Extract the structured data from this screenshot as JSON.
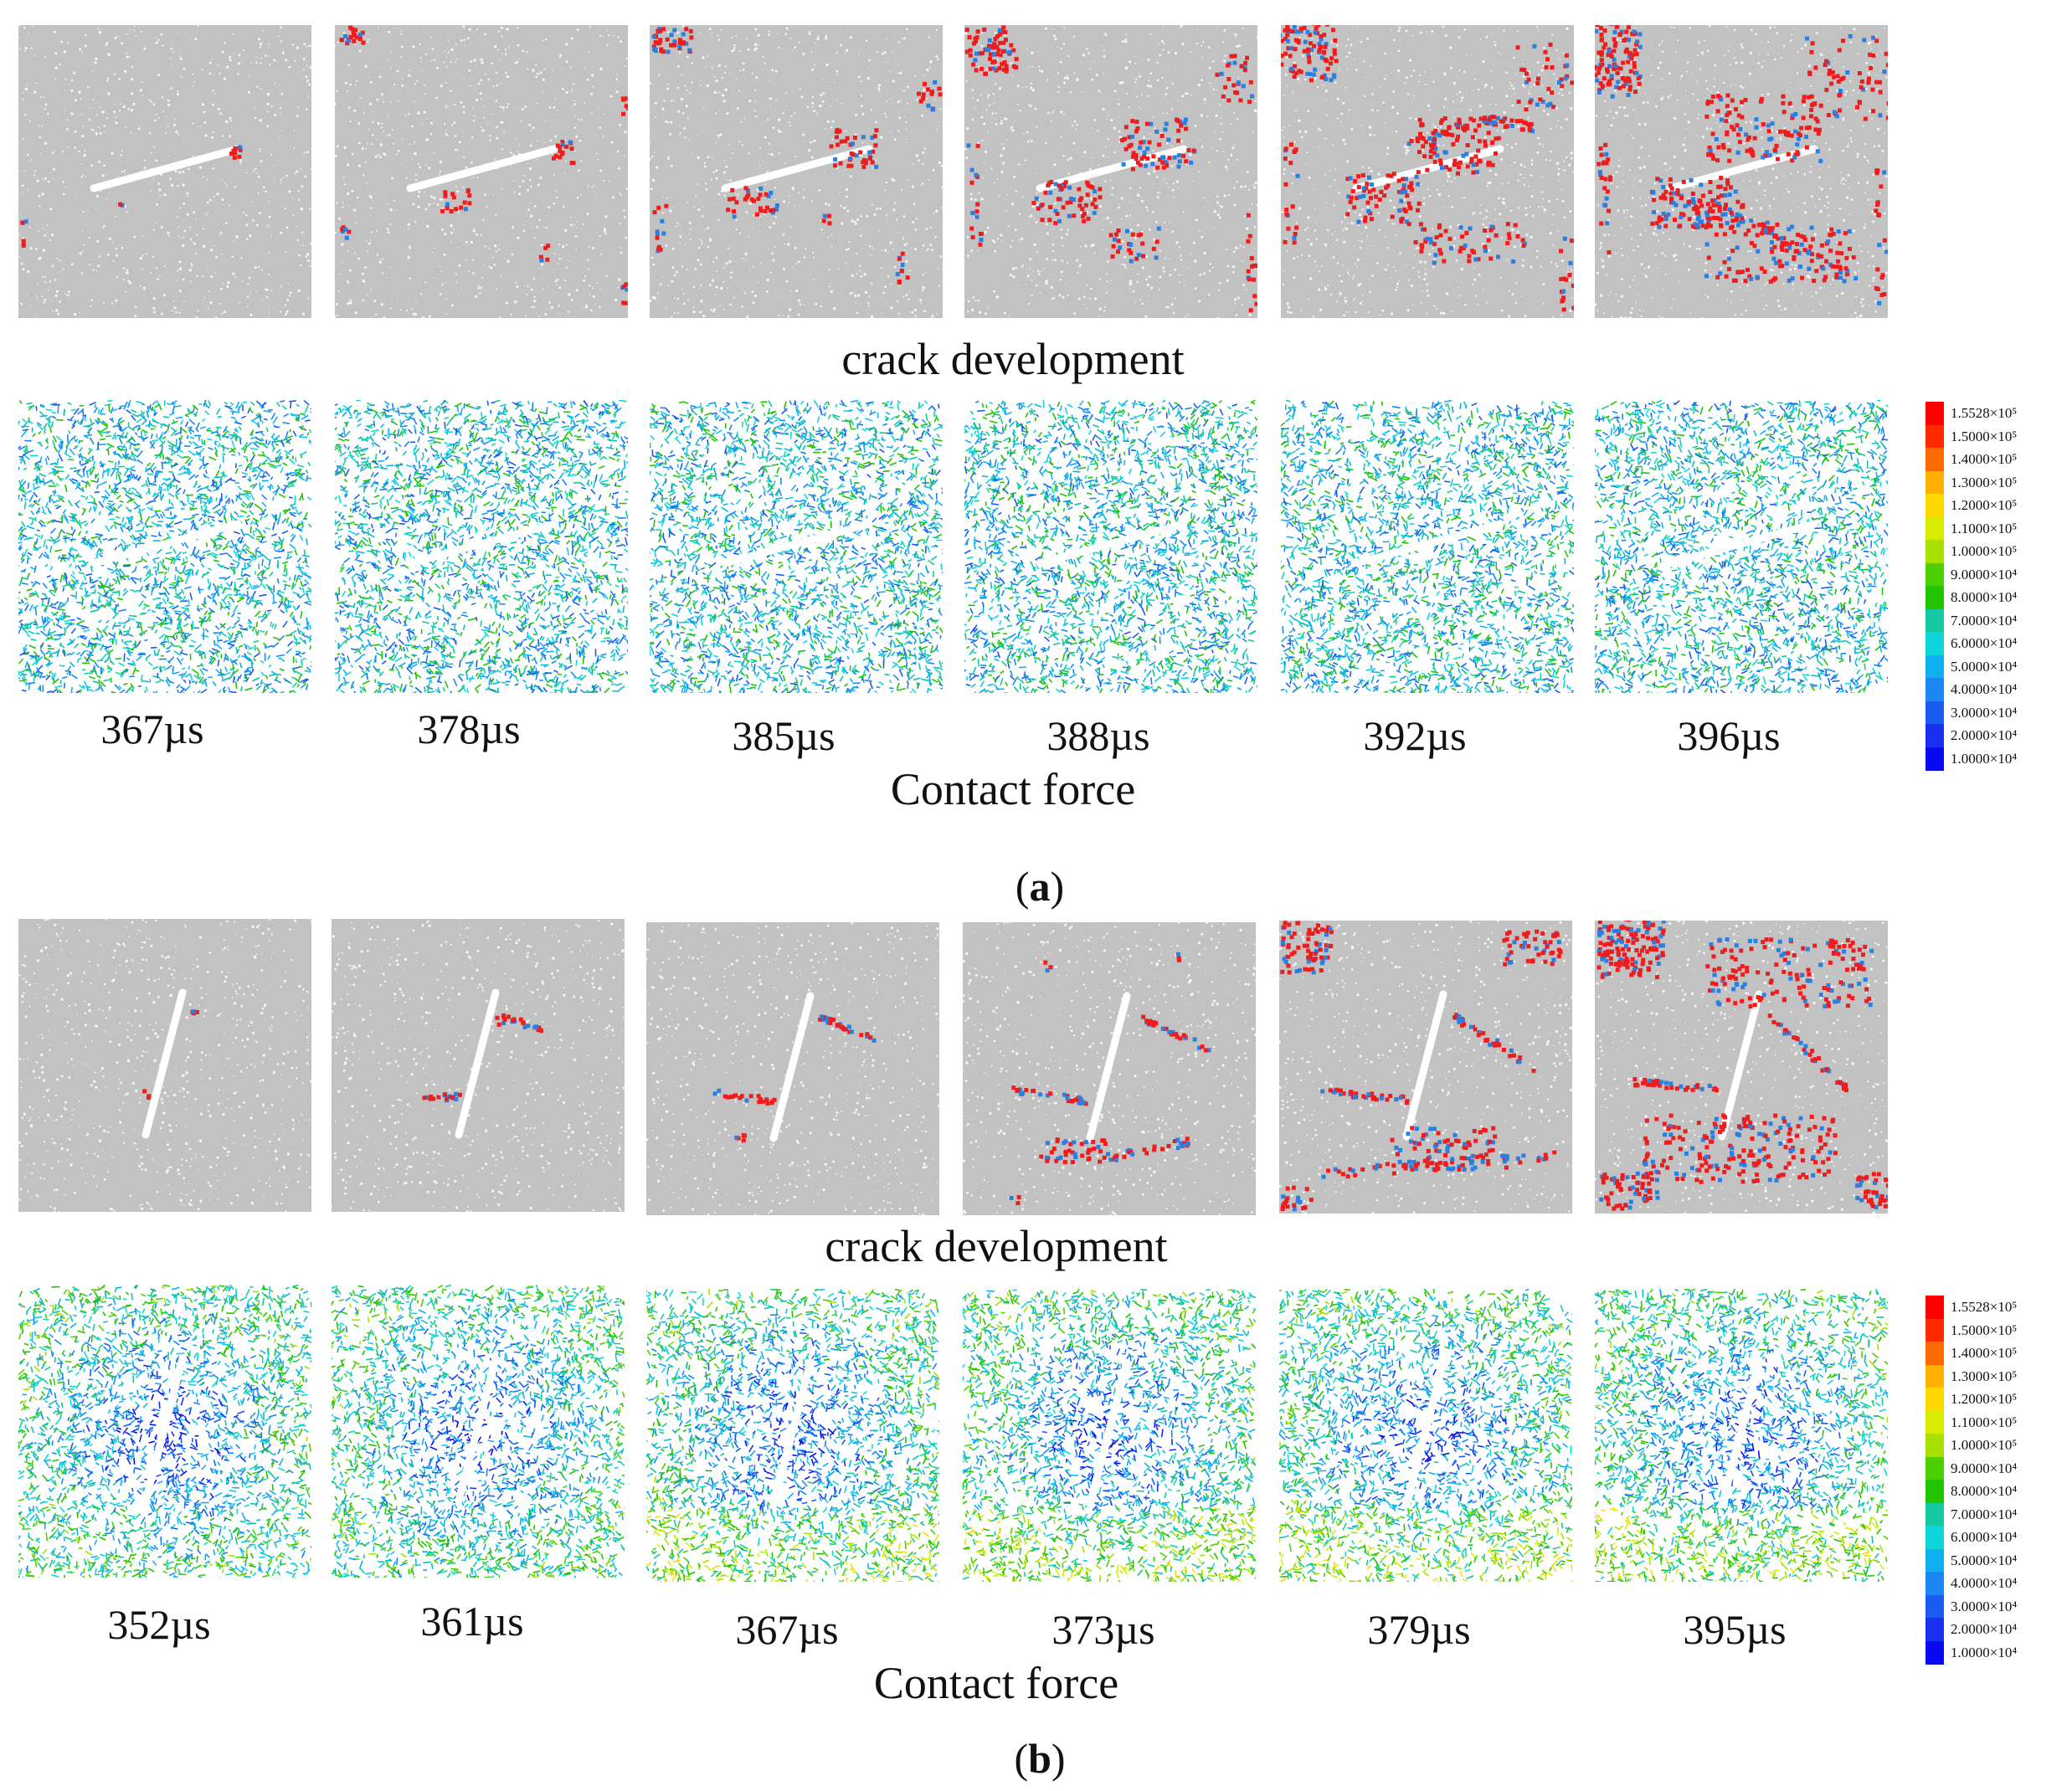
{
  "figure": {
    "a": {
      "label": "a",
      "crack_caption": "crack development",
      "force_caption": "Contact force",
      "times": [
        "367µs",
        "378µs",
        "385µs",
        "388µs",
        "392µs",
        "396µs"
      ]
    },
    "b": {
      "label": "b",
      "crack_caption": "crack development",
      "force_caption": "Contact force",
      "times": [
        "352µs",
        "361µs",
        "367µs",
        "373µs",
        "379µs",
        "395µs"
      ]
    }
  },
  "colorbar": {
    "labels": [
      "1.5528×10⁵",
      "1.5000×10⁵",
      "1.4000×10⁵",
      "1.3000×10⁵",
      "1.2000×10⁵",
      "1.1000×10⁵",
      "1.0000×10⁵",
      "9.0000×10⁴",
      "8.0000×10⁴",
      "7.0000×10⁴",
      "6.0000×10⁴",
      "5.0000×10⁴",
      "4.0000×10⁴",
      "3.0000×10⁴",
      "2.0000×10⁴",
      "1.0000×10⁴"
    ],
    "colors": [
      "#ff0000",
      "#ff2a00",
      "#ff6a00",
      "#ffb000",
      "#ffd800",
      "#d8ec00",
      "#a8e000",
      "#4cd000",
      "#22c400",
      "#14c8a0",
      "#10d4dc",
      "#10b0f0",
      "#1a88f0",
      "#1a5cf0",
      "#1a30f0",
      "#0a0af0"
    ]
  },
  "colors": {
    "specimen_gray": "#c2c2c2",
    "tensile_crack": "#ee1c1c",
    "shear_crack": "#2a7fe0",
    "flaw": "#ffffff"
  }
}
